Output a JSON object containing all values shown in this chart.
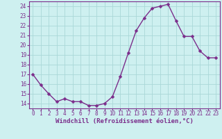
{
  "hours": [
    0,
    1,
    2,
    3,
    4,
    5,
    6,
    7,
    8,
    9,
    10,
    11,
    12,
    13,
    14,
    15,
    16,
    17,
    18,
    19,
    20,
    21,
    22,
    23
  ],
  "values": [
    17.0,
    15.9,
    15.0,
    14.2,
    14.5,
    14.2,
    14.2,
    13.8,
    13.8,
    14.0,
    14.7,
    16.8,
    19.2,
    21.5,
    22.8,
    23.8,
    24.0,
    24.2,
    22.5,
    20.9,
    20.9,
    19.4,
    18.7,
    18.7
  ],
  "line_color": "#7b2d8b",
  "marker": "D",
  "marker_size": 2.5,
  "bg_color": "#cef0f0",
  "grid_color": "#aad8d8",
  "xlabel": "Windchill (Refroidissement éolien,°C)",
  "xlim": [
    -0.5,
    23.5
  ],
  "ylim": [
    13.5,
    24.5
  ],
  "yticks": [
    14,
    15,
    16,
    17,
    18,
    19,
    20,
    21,
    22,
    23,
    24
  ],
  "xticks": [
    0,
    1,
    2,
    3,
    4,
    5,
    6,
    7,
    8,
    9,
    10,
    11,
    12,
    13,
    14,
    15,
    16,
    17,
    18,
    19,
    20,
    21,
    22,
    23
  ],
  "line_width": 1.0,
  "tick_fontsize": 5.5,
  "xlabel_fontsize": 6.5,
  "spine_color": "#7b2d8b"
}
